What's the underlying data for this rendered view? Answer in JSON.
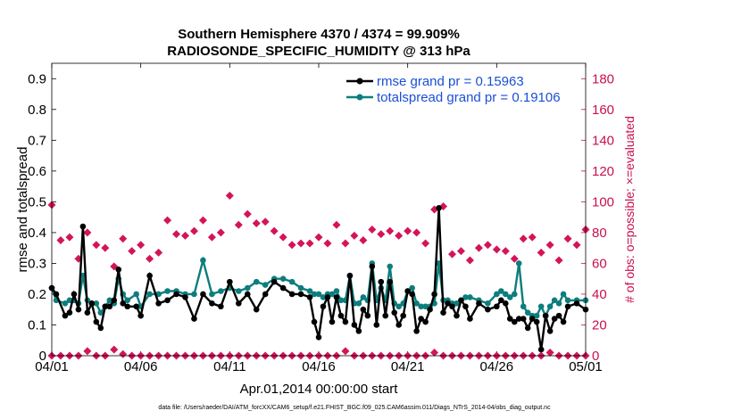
{
  "chart_data": {
    "type": "line",
    "title": "Southern Hemisphere 4370 / 4374 = 99.909%",
    "subtitle": "RADIOSONDE_SPECIFIC_HUMIDITY @ 313 hPa",
    "xlabel": "Apr.01,2014 00:00:00 start",
    "ylabel": "rmse and totalspread",
    "ylabel_right": "# of obs: o=possible; ×=evaluated",
    "footnote": "data file: /Users/raeder/DAI/ATM_forcXX/CAM6_setup/f.e21.FHIST_BGC.f09_025.CAM6assim.011/Diags_NTrS_2014-04/obs_diag_output.nc",
    "xlim": [
      0,
      30
    ],
    "ylim": [
      0,
      0.95
    ],
    "ylim_right": [
      0,
      190
    ],
    "x_ticks": [
      0,
      5,
      10,
      15,
      20,
      25,
      30
    ],
    "x_tick_labels": [
      "04/01",
      "04/06",
      "04/11",
      "04/16",
      "04/21",
      "04/26",
      "05/01"
    ],
    "y_ticks": [
      0,
      0.1,
      0.2,
      0.3,
      0.4,
      0.5,
      0.6,
      0.7,
      0.8,
      0.9
    ],
    "y_tick_labels": [
      "0",
      "0.1",
      "0.2",
      "0.3",
      "0.4",
      "0.5",
      "0.6",
      "0.7",
      "0.8",
      "0.9"
    ],
    "y_ticks_right": [
      0,
      20,
      40,
      60,
      80,
      100,
      120,
      140,
      160,
      180
    ],
    "y_tick_labels_right": [
      "0",
      "20",
      "40",
      "60",
      "80",
      "100",
      "120",
      "140",
      "160",
      "180"
    ],
    "legend_position": "top-right",
    "colors": {
      "rmse": "#000000",
      "spread": "#0e7d7d",
      "obs": "#d4145a",
      "right_axis": "#c8104f",
      "legend_text": "#1a4fd6"
    },
    "series": [
      {
        "name": "rmse grand pr = 0.15963",
        "x": [
          0,
          0.25,
          0.75,
          1,
          1.25,
          1.5,
          1.75,
          2,
          2.25,
          2.5,
          2.75,
          3,
          3.25,
          3.5,
          3.75,
          4,
          4.25,
          4.75,
          5,
          5.5,
          6,
          6.5,
          7,
          7.5,
          8,
          8.5,
          9,
          9.5,
          10,
          10.5,
          11,
          11.5,
          12,
          12.5,
          13,
          13.5,
          14,
          14.5,
          14.75,
          15,
          15.25,
          15.5,
          15.75,
          16,
          16.25,
          16.5,
          16.75,
          17,
          17.25,
          17.5,
          17.75,
          18,
          18.25,
          18.5,
          18.75,
          19,
          19.25,
          19.5,
          19.75,
          20,
          20.25,
          20.5,
          20.75,
          21,
          21.25,
          21.5,
          21.75,
          22,
          22.25,
          22.5,
          22.75,
          23,
          23.25,
          23.5,
          24,
          24.5,
          25,
          25.25,
          25.5,
          25.75,
          26,
          26.25,
          26.5,
          26.75,
          27,
          27.25,
          27.5,
          27.75,
          28,
          28.25,
          28.5,
          28.75,
          29,
          29.5,
          30
        ],
        "y": [
          0.22,
          0.2,
          0.13,
          0.14,
          0.2,
          0.15,
          0.42,
          0.14,
          0.17,
          0.11,
          0.09,
          0.16,
          0.16,
          0.18,
          0.28,
          0.17,
          0.16,
          0.16,
          0.13,
          0.26,
          0.17,
          0.18,
          0.2,
          0.19,
          0.12,
          0.2,
          0.17,
          0.16,
          0.24,
          0.17,
          0.2,
          0.15,
          0.2,
          0.24,
          0.22,
          0.2,
          0.2,
          0.19,
          0.11,
          0.06,
          0.16,
          0.19,
          0.11,
          0.19,
          0.13,
          0.11,
          0.26,
          0.1,
          0.08,
          0.15,
          0.13,
          0.29,
          0.1,
          0.24,
          0.13,
          0.24,
          0.14,
          0.1,
          0.13,
          0.21,
          0.2,
          0.08,
          0.12,
          0.11,
          0.15,
          0.2,
          0.48,
          0.14,
          0.17,
          0.16,
          0.13,
          0.18,
          0.16,
          0.12,
          0.17,
          0.15,
          0.16,
          0.18,
          0.17,
          0.12,
          0.11,
          0.12,
          0.12,
          0.09,
          0.12,
          0.11,
          0.02,
          0.13,
          0.08,
          0.12,
          0.13,
          0.11,
          0.16,
          0.17,
          0.15
        ]
      },
      {
        "name": "totalspread grand pr = 0.19106",
        "x": [
          0,
          0.25,
          0.75,
          1,
          1.25,
          1.5,
          1.75,
          2,
          2.25,
          2.5,
          2.75,
          3,
          3.25,
          3.5,
          3.75,
          4,
          4.25,
          4.75,
          5,
          5.5,
          6,
          6.5,
          7,
          7.5,
          8,
          8.5,
          9,
          9.5,
          10,
          10.5,
          11,
          11.5,
          12,
          12.5,
          13,
          13.5,
          14,
          14.5,
          14.75,
          15,
          15.25,
          15.5,
          15.75,
          16,
          16.25,
          16.5,
          16.75,
          17,
          17.25,
          17.5,
          17.75,
          18,
          18.25,
          18.5,
          18.75,
          19,
          19.25,
          19.5,
          19.75,
          20,
          20.25,
          20.5,
          20.75,
          21,
          21.25,
          21.5,
          21.75,
          22,
          22.25,
          22.5,
          22.75,
          23,
          23.25,
          23.5,
          24,
          24.5,
          25,
          25.25,
          25.5,
          25.75,
          26,
          26.25,
          26.5,
          26.75,
          27,
          27.25,
          27.5,
          27.75,
          28,
          28.25,
          28.5,
          28.75,
          29,
          29.5,
          30
        ],
        "y": [
          0.22,
          0.18,
          0.17,
          0.18,
          0.18,
          0.17,
          0.26,
          0.18,
          0.17,
          0.17,
          0.14,
          0.16,
          0.18,
          0.17,
          0.25,
          0.2,
          0.18,
          0.2,
          0.16,
          0.2,
          0.2,
          0.21,
          0.21,
          0.2,
          0.2,
          0.31,
          0.2,
          0.21,
          0.22,
          0.21,
          0.22,
          0.24,
          0.23,
          0.25,
          0.25,
          0.24,
          0.22,
          0.21,
          0.2,
          0.2,
          0.19,
          0.2,
          0.2,
          0.21,
          0.18,
          0.18,
          0.26,
          0.17,
          0.17,
          0.19,
          0.18,
          0.3,
          0.18,
          0.22,
          0.18,
          0.29,
          0.17,
          0.16,
          0.17,
          0.21,
          0.22,
          0.17,
          0.16,
          0.16,
          0.16,
          0.17,
          0.3,
          0.18,
          0.18,
          0.17,
          0.17,
          0.18,
          0.19,
          0.19,
          0.18,
          0.17,
          0.2,
          0.21,
          0.2,
          0.19,
          0.2,
          0.3,
          0.16,
          0.14,
          0.13,
          0.13,
          0.16,
          0.13,
          0.16,
          0.18,
          0.17,
          0.2,
          0.18,
          0.18,
          0.18
        ]
      },
      {
        "name": "obs possible",
        "x": [
          0,
          0.5,
          1,
          1.5,
          2,
          2.5,
          3,
          3.5,
          4,
          4.5,
          5,
          5.5,
          6,
          6.5,
          7,
          7.5,
          8,
          8.5,
          9,
          9.5,
          10,
          10.5,
          11,
          11.5,
          12,
          12.5,
          13,
          13.5,
          14,
          14.5,
          15,
          15.5,
          16,
          16.5,
          17,
          17.5,
          18,
          18.5,
          19,
          19.5,
          20,
          20.5,
          21,
          21.5,
          22,
          22.5,
          23,
          23.5,
          24,
          24.5,
          25,
          25.5,
          26,
          26.5,
          27,
          27.5,
          28,
          28.5,
          29,
          29.5,
          30
        ],
        "y": [
          98,
          75,
          77,
          63,
          80,
          72,
          70,
          58,
          76,
          68,
          72,
          63,
          67,
          88,
          79,
          78,
          81,
          88,
          77,
          80,
          104,
          85,
          92,
          86,
          87,
          81,
          77,
          72,
          73,
          73,
          77,
          73,
          85,
          73,
          78,
          75,
          82,
          79,
          81,
          78,
          81,
          80,
          73,
          95,
          97,
          66,
          68,
          62,
          70,
          72,
          69,
          68,
          63,
          76,
          77,
          67,
          72,
          62,
          76,
          72,
          82
        ]
      },
      {
        "name": "obs evaluated",
        "x": [
          0,
          0.5,
          1,
          1.5,
          2,
          2.5,
          3,
          3.5,
          4,
          4.5,
          5,
          5.5,
          6,
          6.5,
          7,
          7.5,
          8,
          8.5,
          9,
          9.5,
          10,
          10.5,
          11,
          11.5,
          12,
          12.5,
          13,
          13.5,
          14,
          14.5,
          15,
          15.5,
          16,
          16.5,
          17,
          17.5,
          18,
          18.5,
          19,
          19.5,
          20,
          20.5,
          21,
          21.5,
          22,
          22.5,
          23,
          23.5,
          24,
          24.5,
          25,
          25.5,
          26,
          26.5,
          27,
          27.5,
          28,
          28.5,
          29,
          29.5,
          30
        ],
        "y": [
          0,
          0,
          0,
          0,
          3,
          0,
          0,
          4,
          1,
          0,
          0,
          0,
          0,
          0,
          0,
          0,
          0,
          0,
          0,
          0,
          0,
          0,
          0,
          0,
          0,
          0,
          0,
          0,
          0,
          0,
          0,
          0,
          0,
          3,
          0,
          0,
          0,
          0,
          0,
          0,
          0,
          0,
          0,
          2,
          0,
          0,
          0,
          0,
          0,
          0,
          0,
          0,
          0,
          0,
          0,
          0,
          2,
          0,
          0,
          0,
          0
        ]
      }
    ]
  }
}
